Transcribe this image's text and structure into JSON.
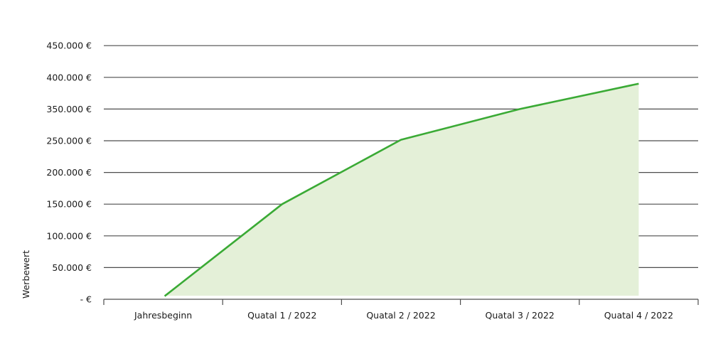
{
  "chart_data": {
    "type": "area",
    "title": "",
    "xlabel": "",
    "ylabel": "Werbewert",
    "categories": [
      "Jahresbeginn",
      "Quatal 1 / 2022",
      "Quatal 2 / 2022",
      "Quatal 3 / 2022",
      "Quatal 4 / 2022"
    ],
    "y_tick_labels": [
      "- €",
      "50.000 €",
      "100.000 €",
      "150.000 €",
      "200.000 €",
      "250.000 €",
      "350.000 €",
      "400.000 €",
      "450.000 €"
    ],
    "series": [
      {
        "values": [
          5000,
          150000,
          253000,
          350000,
          390000
        ]
      }
    ],
    "grid": true,
    "legend": "none",
    "colors": {
      "line": "#3aaa35",
      "fill": "#e4f0d8",
      "grid": "#4d4d4d",
      "text": "#1a1a1a"
    }
  }
}
